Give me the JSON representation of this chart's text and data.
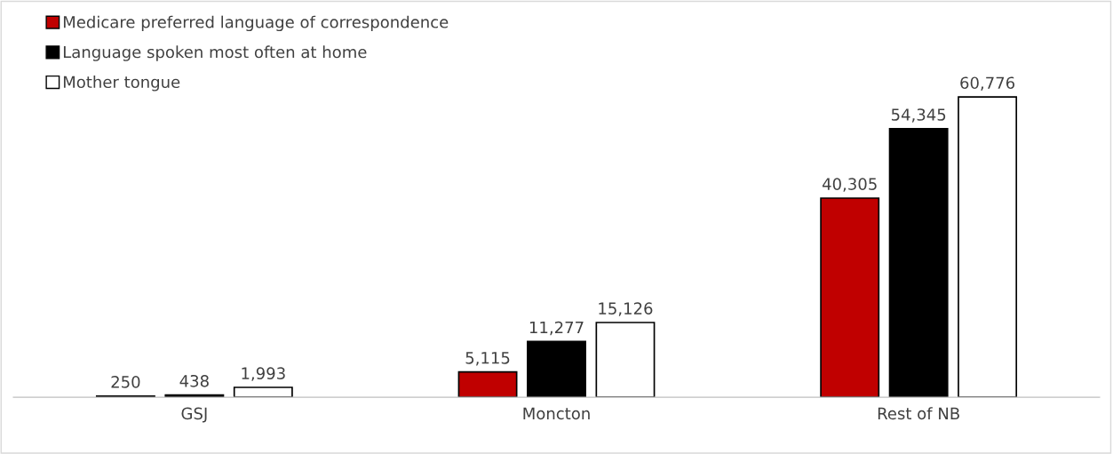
{
  "chart_data": {
    "type": "bar",
    "categories": [
      "GSJ",
      "Moncton",
      "Rest of NB"
    ],
    "series": [
      {
        "name": "Medicare preferred language of correspondence",
        "color": "#c00000",
        "values": [
          250,
          5115,
          40305
        ],
        "value_labels": [
          "250",
          "5,115",
          "40,305"
        ]
      },
      {
        "name": "Language spoken most often at home",
        "color": "#000000",
        "values": [
          438,
          11277,
          54345
        ],
        "value_labels": [
          "438",
          "11,277",
          "54,345"
        ]
      },
      {
        "name": "Mother tongue",
        "color": "#ffffff",
        "values": [
          1993,
          15126,
          60776
        ],
        "value_labels": [
          "1,993",
          "15,126",
          "60,776"
        ]
      }
    ],
    "legend": "top left",
    "grid": false
  }
}
